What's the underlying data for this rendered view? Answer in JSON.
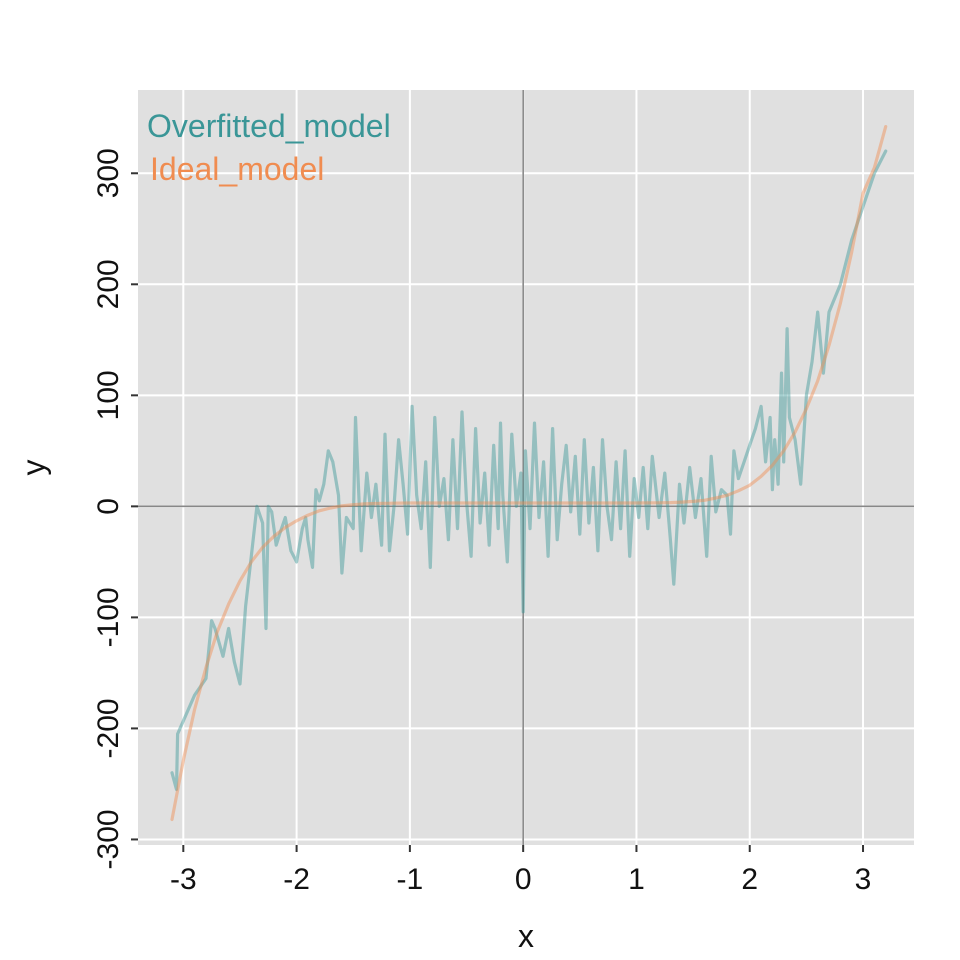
{
  "chart_data": {
    "type": "line",
    "title": "",
    "xlabel": "x",
    "ylabel": "y",
    "xlim": [
      -3.4,
      3.45
    ],
    "ylim": [
      -305,
      375
    ],
    "xticks": [
      -3,
      -2,
      -1,
      0,
      1,
      2,
      3
    ],
    "yticks": [
      -300,
      -200,
      -100,
      0,
      100,
      200,
      300
    ],
    "grid": true,
    "reference_lines": {
      "x": 0,
      "y": 0
    },
    "legend_position": "top-left",
    "colors": {
      "panel": "#e0e0e0",
      "grid": "#ffffff",
      "reference": "#888888",
      "overfitted": "#3a9697",
      "ideal": "#f08c50"
    },
    "series": [
      {
        "name": "Overfitted_model",
        "color": "#3a9697",
        "x": [
          -3.1,
          -3.06,
          -3.05,
          -2.9,
          -2.8,
          -2.75,
          -2.72,
          -2.65,
          -2.6,
          -2.55,
          -2.5,
          -2.45,
          -2.4,
          -2.35,
          -2.3,
          -2.27,
          -2.25,
          -2.22,
          -2.18,
          -2.15,
          -2.1,
          -2.05,
          -2.0,
          -1.95,
          -1.92,
          -1.9,
          -1.86,
          -1.83,
          -1.8,
          -1.76,
          -1.72,
          -1.68,
          -1.63,
          -1.6,
          -1.56,
          -1.5,
          -1.48,
          -1.43,
          -1.38,
          -1.34,
          -1.3,
          -1.25,
          -1.22,
          -1.18,
          -1.14,
          -1.1,
          -1.06,
          -1.02,
          -0.98,
          -0.94,
          -0.9,
          -0.86,
          -0.82,
          -0.78,
          -0.74,
          -0.7,
          -0.66,
          -0.62,
          -0.58,
          -0.54,
          -0.5,
          -0.46,
          -0.42,
          -0.38,
          -0.34,
          -0.3,
          -0.26,
          -0.22,
          -0.2,
          -0.18,
          -0.14,
          -0.1,
          -0.06,
          -0.02,
          0.0,
          0.02,
          0.06,
          0.1,
          0.14,
          0.18,
          0.22,
          0.26,
          0.3,
          0.34,
          0.38,
          0.42,
          0.46,
          0.5,
          0.54,
          0.58,
          0.62,
          0.66,
          0.7,
          0.74,
          0.78,
          0.82,
          0.86,
          0.9,
          0.94,
          0.98,
          1.02,
          1.06,
          1.1,
          1.14,
          1.2,
          1.25,
          1.3,
          1.33,
          1.38,
          1.42,
          1.47,
          1.52,
          1.57,
          1.62,
          1.66,
          1.7,
          1.75,
          1.8,
          1.83,
          1.86,
          1.9,
          1.95,
          2.0,
          2.05,
          2.1,
          2.14,
          2.18,
          2.2,
          2.22,
          2.25,
          2.28,
          2.3,
          2.33,
          2.35,
          2.4,
          2.45,
          2.5,
          2.55,
          2.6,
          2.65,
          2.7,
          2.8,
          2.9,
          3.0,
          3.1,
          3.2
        ],
        "values": [
          -240,
          -255,
          -205,
          -170,
          -155,
          -103,
          -110,
          -135,
          -110,
          -140,
          -160,
          -90,
          -45,
          0,
          -15,
          -110,
          0,
          -5,
          -35,
          -25,
          -10,
          -40,
          -50,
          -20,
          -10,
          -30,
          -55,
          15,
          5,
          20,
          50,
          40,
          10,
          -60,
          -10,
          -20,
          80,
          -40,
          30,
          -10,
          20,
          -35,
          65,
          -40,
          0,
          60,
          20,
          -25,
          90,
          10,
          -20,
          40,
          -55,
          80,
          0,
          25,
          -30,
          60,
          -20,
          85,
          5,
          -45,
          70,
          -15,
          30,
          -35,
          55,
          -20,
          75,
          10,
          -50,
          65,
          0,
          30,
          -95,
          50,
          -20,
          75,
          -10,
          40,
          -45,
          70,
          -30,
          20,
          55,
          -5,
          45,
          -25,
          60,
          -15,
          35,
          -40,
          60,
          0,
          -30,
          40,
          -20,
          50,
          -45,
          25,
          -10,
          35,
          -20,
          45,
          -10,
          30,
          -30,
          -70,
          20,
          -15,
          35,
          -10,
          25,
          -45,
          45,
          -5,
          15,
          10,
          -25,
          50,
          25,
          40,
          55,
          70,
          90,
          40,
          80,
          15,
          60,
          20,
          120,
          40,
          160,
          80,
          60,
          20,
          100,
          130,
          175,
          120,
          175,
          200,
          240,
          270,
          300,
          320
        ]
      },
      {
        "name": "Ideal_model",
        "color": "#f08c50",
        "x": [
          -3.1,
          -3.0,
          -2.9,
          -2.8,
          -2.7,
          -2.6,
          -2.5,
          -2.4,
          -2.3,
          -2.2,
          -2.1,
          -2.0,
          -1.9,
          -1.8,
          -1.7,
          -1.6,
          -1.5,
          -1.4,
          -1.3,
          -1.2,
          -1.1,
          -1.0,
          -0.8,
          -0.6,
          -0.4,
          -0.2,
          0.0,
          0.2,
          0.4,
          0.6,
          0.8,
          1.0,
          1.1,
          1.2,
          1.3,
          1.4,
          1.5,
          1.6,
          1.7,
          1.8,
          1.9,
          2.0,
          2.1,
          2.2,
          2.3,
          2.4,
          2.5,
          2.6,
          2.7,
          2.8,
          2.9,
          3.0,
          3.1,
          3.2
        ],
        "values": [
          -282,
          -229,
          -183,
          -145,
          -113,
          -88,
          -67,
          -50,
          -37,
          -27,
          -19,
          -13,
          -8,
          -4,
          -1.5,
          0.5,
          1.5,
          2.2,
          2.6,
          2.8,
          2.9,
          3,
          3,
          3,
          3,
          3,
          3,
          3,
          3,
          3,
          3,
          3,
          3.1,
          3.2,
          3.4,
          3.8,
          4.5,
          5.5,
          7.5,
          10,
          14,
          19,
          27,
          37,
          50,
          67,
          88,
          113,
          145,
          183,
          229,
          282,
          305,
          342
        ]
      }
    ]
  }
}
